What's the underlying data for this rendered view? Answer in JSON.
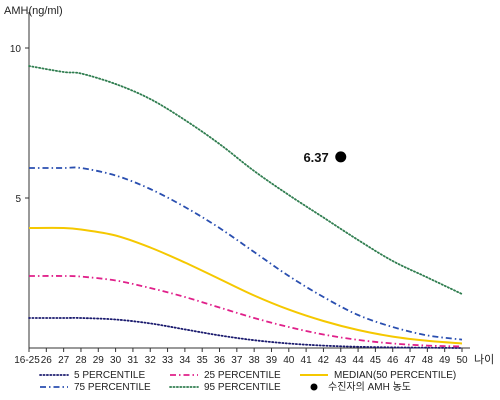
{
  "chart_data": {
    "type": "line",
    "title": "",
    "ylabel": "AMH(ng/ml)",
    "xlabel": "나이",
    "ylim": [
      0,
      11
    ],
    "yticks": [
      5,
      10
    ],
    "xlim": [
      25,
      50
    ],
    "x_ticks": [
      {
        "x": 25,
        "label": "16-25"
      },
      {
        "x": 26,
        "label": "26"
      },
      {
        "x": 27,
        "label": "27"
      },
      {
        "x": 28,
        "label": "28"
      },
      {
        "x": 29,
        "label": "29"
      },
      {
        "x": 30,
        "label": "30"
      },
      {
        "x": 31,
        "label": "31"
      },
      {
        "x": 32,
        "label": "32"
      },
      {
        "x": 33,
        "label": "33"
      },
      {
        "x": 34,
        "label": "34"
      },
      {
        "x": 35,
        "label": "35"
      },
      {
        "x": 36,
        "label": "36"
      },
      {
        "x": 37,
        "label": "37"
      },
      {
        "x": 38,
        "label": "38"
      },
      {
        "x": 39,
        "label": "39"
      },
      {
        "x": 40,
        "label": "40"
      },
      {
        "x": 41,
        "label": "41"
      },
      {
        "x": 42,
        "label": "42"
      },
      {
        "x": 43,
        "label": "43"
      },
      {
        "x": 44,
        "label": "44"
      },
      {
        "x": 45,
        "label": "45"
      },
      {
        "x": 46,
        "label": "46"
      },
      {
        "x": 47,
        "label": "47"
      },
      {
        "x": 48,
        "label": "48"
      },
      {
        "x": 49,
        "label": "49"
      },
      {
        "x": 50,
        "label": "50"
      }
    ],
    "grid": false,
    "legend_position": "bottom",
    "x": [
      25,
      27,
      28,
      30,
      32,
      34,
      36,
      38,
      40,
      42,
      44,
      46,
      48,
      50
    ],
    "series": [
      {
        "name": "5 PERCENTILE",
        "color": "#1a1a6e",
        "dash": "dotted",
        "values": [
          1.0,
          1.0,
          1.0,
          0.95,
          0.82,
          0.62,
          0.42,
          0.26,
          0.15,
          0.08,
          0.04,
          0.02,
          0.01,
          0.0
        ]
      },
      {
        "name": "25 PERCENTILE",
        "color": "#e0208a",
        "dash": "dashdot",
        "values": [
          2.4,
          2.4,
          2.38,
          2.25,
          2.0,
          1.7,
          1.35,
          1.0,
          0.7,
          0.45,
          0.27,
          0.15,
          0.08,
          0.05
        ]
      },
      {
        "name": "MEDIAN(50 PERCENTILE)",
        "color": "#f5c800",
        "dash": "solid",
        "values": [
          4.0,
          4.0,
          3.95,
          3.75,
          3.35,
          2.85,
          2.3,
          1.75,
          1.28,
          0.9,
          0.6,
          0.38,
          0.24,
          0.15
        ]
      },
      {
        "name": "75 PERCENTILE",
        "color": "#2a4fb0",
        "dash": "dashdot",
        "values": [
          6.0,
          6.0,
          6.0,
          5.75,
          5.3,
          4.7,
          4.0,
          3.2,
          2.4,
          1.7,
          1.1,
          0.7,
          0.42,
          0.28
        ]
      },
      {
        "name": "95 PERCENTILE",
        "color": "#2f7d4f",
        "dash": "dotted",
        "values": [
          9.4,
          9.2,
          9.15,
          8.8,
          8.3,
          7.6,
          6.8,
          5.9,
          5.1,
          4.35,
          3.6,
          2.9,
          2.35,
          1.8
        ]
      }
    ],
    "points": [
      {
        "name": "수진자의 AMH 농도",
        "x": 43,
        "y": 6.37,
        "label": "6.37",
        "color": "#000000"
      }
    ]
  }
}
